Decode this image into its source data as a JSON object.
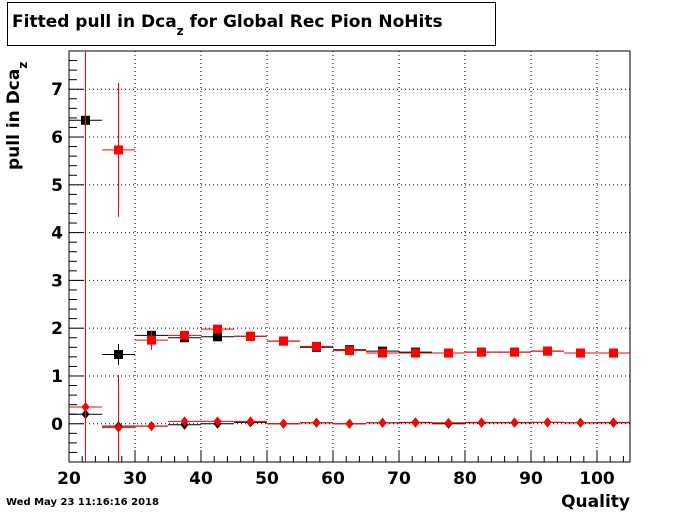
{
  "title": {
    "main": "Fitted pull in Dca",
    "sub": "z",
    "rest": " for Global Rec Pion NoHits"
  },
  "ylabel": {
    "main": "pull in Dca",
    "sub": "z"
  },
  "xlabel": "Quality",
  "timestamp": "Wed May 23 11:16:16 2018",
  "colors": {
    "black": "#000000",
    "red": "#ff0000"
  },
  "chart_data": {
    "type": "scatter",
    "xlim": [
      20,
      105
    ],
    "ylim": [
      -0.8,
      7.8
    ],
    "grid": true,
    "xticks": [
      20,
      30,
      40,
      50,
      60,
      70,
      80,
      90,
      100
    ],
    "yticks": [
      0,
      1,
      2,
      3,
      4,
      5,
      6,
      7
    ],
    "series": [
      {
        "marker": "square",
        "color": "#000000",
        "points": [
          [
            22.5,
            6.35,
            2.5,
            0
          ],
          [
            27.5,
            1.45,
            2.5,
            0.22
          ],
          [
            32.5,
            1.85,
            2.5,
            0.1
          ],
          [
            37.5,
            1.8,
            2.5,
            0.07
          ],
          [
            42.5,
            1.82,
            2.5,
            0.07
          ],
          [
            47.5,
            1.83,
            2.5,
            0.05
          ],
          [
            52.5,
            1.73,
            2.5,
            0.05
          ],
          [
            57.5,
            1.6,
            2.5,
            0.04
          ],
          [
            62.5,
            1.55,
            2.5,
            0.04
          ],
          [
            67.5,
            1.52,
            2.5,
            0.04
          ],
          [
            72.5,
            1.5,
            2.5,
            0.04
          ],
          [
            77.5,
            1.48,
            2.5,
            0.04
          ],
          [
            82.5,
            1.5,
            2.5,
            0.04
          ],
          [
            87.5,
            1.5,
            2.5,
            0.04
          ],
          [
            92.5,
            1.52,
            2.5,
            0.04
          ],
          [
            97.5,
            1.48,
            2.5,
            0.04
          ],
          [
            102.5,
            1.48,
            2.5,
            0.04
          ]
        ]
      },
      {
        "marker": "square",
        "color": "#ff0000",
        "points": [
          [
            27.5,
            5.73,
            2.5,
            1.4
          ],
          [
            32.5,
            1.75,
            2.5,
            0.2
          ],
          [
            37.5,
            1.85,
            2.5,
            0.08
          ],
          [
            42.5,
            1.98,
            2.5,
            0.07
          ],
          [
            47.5,
            1.83,
            2.5,
            0.05
          ],
          [
            52.5,
            1.73,
            2.5,
            0.05
          ],
          [
            57.5,
            1.62,
            2.5,
            0.04
          ],
          [
            62.5,
            1.53,
            2.5,
            0.04
          ],
          [
            67.5,
            1.48,
            2.5,
            0.04
          ],
          [
            72.5,
            1.48,
            2.5,
            0.04
          ],
          [
            77.5,
            1.48,
            2.5,
            0.04
          ],
          [
            82.5,
            1.5,
            2.5,
            0.04
          ],
          [
            87.5,
            1.5,
            2.5,
            0.04
          ],
          [
            92.5,
            1.52,
            2.5,
            0.04
          ],
          [
            97.5,
            1.48,
            2.5,
            0.04
          ],
          [
            102.5,
            1.48,
            2.5,
            0.04
          ]
        ]
      },
      {
        "marker": "diamond",
        "color": "#000000",
        "points": [
          [
            22.5,
            0.2,
            2.5,
            0.05
          ],
          [
            27.5,
            -0.05,
            2.5,
            0.05
          ],
          [
            32.5,
            -0.05,
            2.5,
            0.04
          ],
          [
            37.5,
            -0.02,
            2.5,
            0.03
          ],
          [
            42.5,
            0.0,
            2.5,
            0.03
          ],
          [
            47.5,
            0.03,
            2.5,
            0.03
          ],
          [
            52.5,
            0.0,
            2.5,
            0.03
          ],
          [
            57.5,
            0.02,
            2.5,
            0.03
          ],
          [
            62.5,
            0.0,
            2.5,
            0.03
          ],
          [
            67.5,
            0.02,
            2.5,
            0.03
          ],
          [
            72.5,
            0.03,
            2.5,
            0.03
          ],
          [
            77.5,
            0.0,
            2.5,
            0.03
          ],
          [
            82.5,
            0.02,
            2.5,
            0.03
          ],
          [
            87.5,
            0.02,
            2.5,
            0.03
          ],
          [
            92.5,
            0.03,
            2.5,
            0.03
          ],
          [
            97.5,
            0.02,
            2.5,
            0.03
          ],
          [
            102.5,
            0.02,
            2.5,
            0.03
          ]
        ]
      },
      {
        "marker": "diamond",
        "color": "#ff0000",
        "points": [
          [
            22.5,
            0.35,
            2.5,
            9.0
          ],
          [
            27.5,
            -0.08,
            2.5,
            1.1
          ],
          [
            32.5,
            -0.05,
            2.5,
            0.05
          ],
          [
            37.5,
            0.05,
            2.5,
            0.04
          ],
          [
            42.5,
            0.05,
            2.5,
            0.03
          ],
          [
            47.5,
            0.05,
            2.5,
            0.03
          ],
          [
            52.5,
            0.0,
            2.5,
            0.03
          ],
          [
            57.5,
            0.02,
            2.5,
            0.03
          ],
          [
            62.5,
            0.0,
            2.5,
            0.03
          ],
          [
            67.5,
            0.02,
            2.5,
            0.03
          ],
          [
            72.5,
            0.02,
            2.5,
            0.03
          ],
          [
            77.5,
            0.02,
            2.5,
            0.03
          ],
          [
            82.5,
            0.03,
            2.5,
            0.03
          ],
          [
            87.5,
            0.03,
            2.5,
            0.03
          ],
          [
            92.5,
            0.03,
            2.5,
            0.03
          ],
          [
            97.5,
            0.02,
            2.5,
            0.03
          ],
          [
            102.5,
            0.03,
            2.5,
            0.03
          ]
        ]
      }
    ]
  }
}
